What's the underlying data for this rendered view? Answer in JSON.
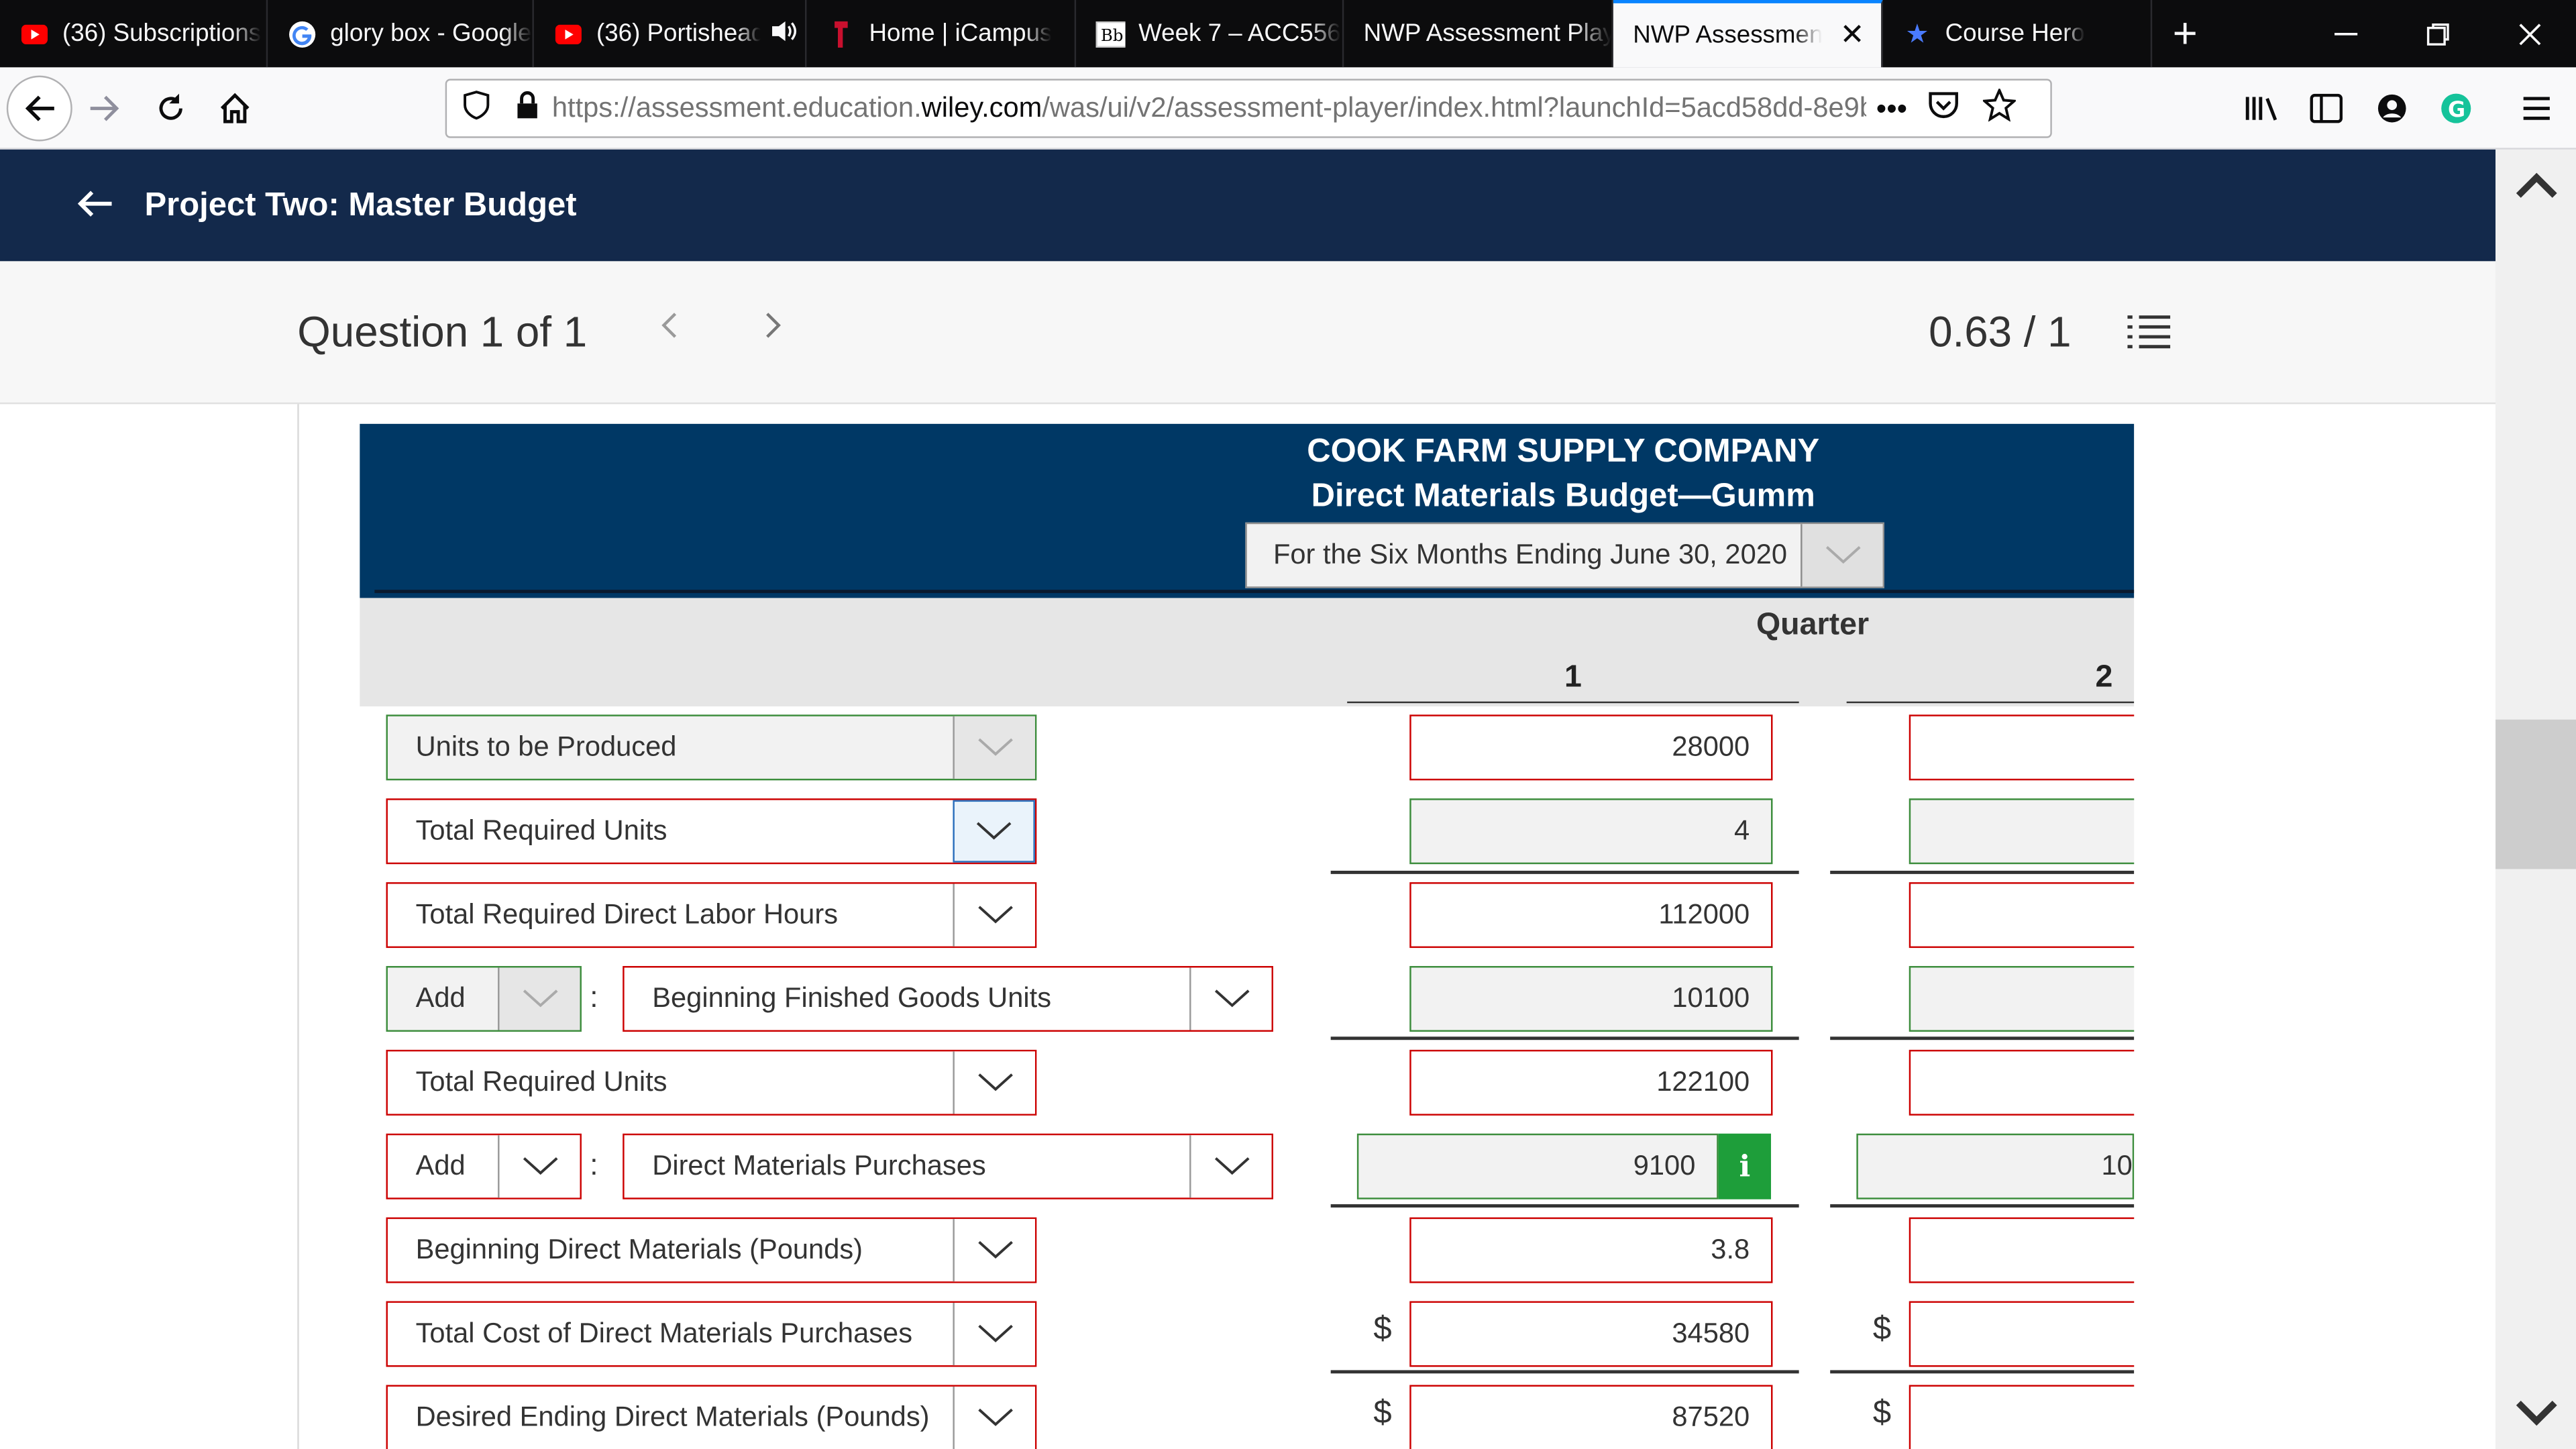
{
  "browser": {
    "tabs": [
      {
        "label": "(36) Subscriptions",
        "icon": "youtube-icon"
      },
      {
        "label": "glory box - Google",
        "icon": "google-icon"
      },
      {
        "label": "(36) Portishead",
        "icon": "youtube-icon"
      },
      {
        "label": "Home | iCampus",
        "icon": "icampus-icon"
      },
      {
        "label": "Week 7 – ACC556",
        "icon": "blackboard-icon"
      },
      {
        "label": "NWP Assessment Player",
        "icon": ""
      },
      {
        "label": "NWP Assessment",
        "icon": ""
      },
      {
        "label": "Course Hero",
        "icon": "star-icon"
      }
    ],
    "url_prefix": "https://assessment.education.",
    "url_domain": "wiley.com",
    "url_rest": "/was/ui/v2/assessment-player/index.html?launchId=5acd58dd-8e9b"
  },
  "header": {
    "title": "Project Two: Master Budget"
  },
  "question": {
    "counter": "Question 1 of 1",
    "score": "0.63 / 1"
  },
  "budget": {
    "company": "COOK FARM SUPPLY COMPANY",
    "subtitle": "Direct Materials Budget—Gumm",
    "period": "For the Six Months Ending June 30, 2020",
    "column_group": "Quarter",
    "col1": "1",
    "col2": "2",
    "rows": [
      {
        "label": "Units to be Produced",
        "q1": "28000",
        "q2": "",
        "status": "correct"
      },
      {
        "label": "Total Required Units",
        "q1": "4",
        "q2": "",
        "status": "incorrect"
      },
      {
        "label": "Total Required Direct Labor Hours",
        "q1": "112000",
        "q2": "",
        "status": "incorrect"
      },
      {
        "prefix": "Add",
        "label": "Beginning Finished Goods Units",
        "q1": "10100",
        "q2": "",
        "status": "incorrect"
      },
      {
        "label": "Total Required Units",
        "q1": "122100",
        "q2": "",
        "status": "incorrect"
      },
      {
        "prefix": "Add",
        "label": "Direct Materials Purchases",
        "q1": "9100",
        "q2": "10",
        "status": "incorrect"
      },
      {
        "label": "Beginning Direct Materials (Pounds)",
        "q1": "3.8",
        "q2": "",
        "status": "incorrect"
      },
      {
        "label": "Total Cost of Direct Materials Purchases",
        "q1": "34580",
        "q2": "",
        "status": "incorrect"
      },
      {
        "label": "Desired Ending Direct Materials (Pounds)",
        "q1": "87520",
        "q2": "",
        "status": "incorrect"
      }
    ],
    "currency": "$",
    "info_glyph": "i"
  },
  "colors": {
    "header_bg": "#13294b",
    "budget_bg": "#003865",
    "correct_border": "#3c8d3c",
    "incorrect_border": "#cc0000",
    "info_green": "#1e9e3a"
  }
}
